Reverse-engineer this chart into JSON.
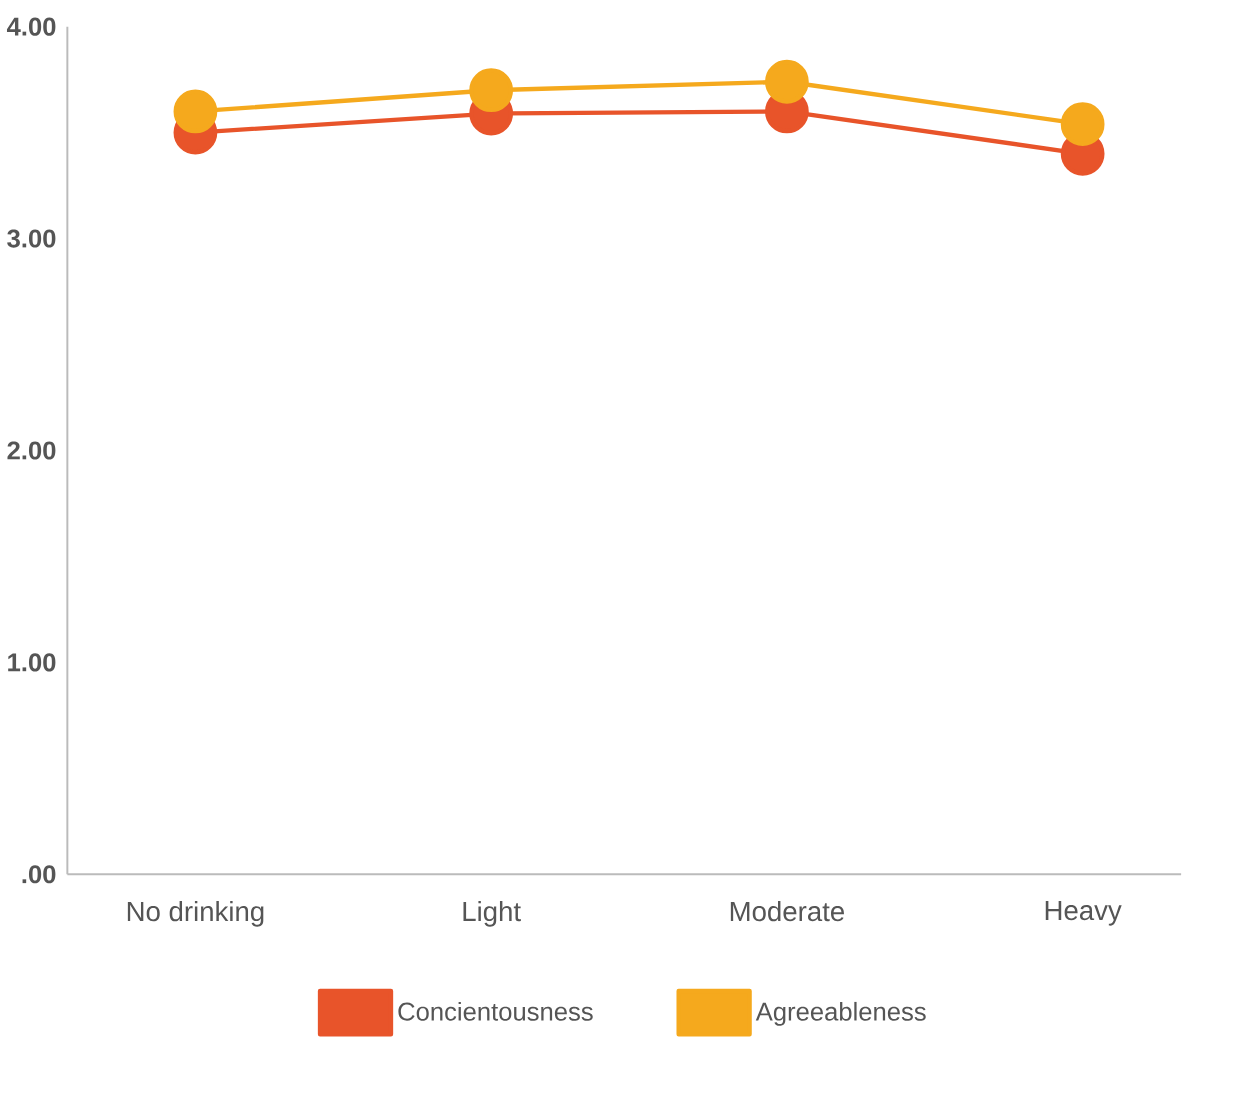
{
  "chart_data": {
    "type": "line",
    "categories": [
      "No drinking",
      "Light",
      "Moderate",
      "Heavy"
    ],
    "series": [
      {
        "name": "Concientousness",
        "color": "#e8542a",
        "values": [
          3.5,
          3.59,
          3.6,
          3.4
        ]
      },
      {
        "name": "Agreeableness",
        "color": "#f5a91d",
        "values": [
          3.6,
          3.7,
          3.74,
          3.54
        ]
      }
    ],
    "ylim": [
      0,
      4
    ],
    "yticks": [
      {
        "value": 0,
        "label": ".00"
      },
      {
        "value": 1,
        "label": "1.00"
      },
      {
        "value": 2,
        "label": "2.00"
      },
      {
        "value": 3,
        "label": "3.00"
      },
      {
        "value": 4,
        "label": "4.00"
      }
    ],
    "grid": false,
    "legend": "bottom",
    "marker": "circle",
    "line_style": "solid"
  }
}
